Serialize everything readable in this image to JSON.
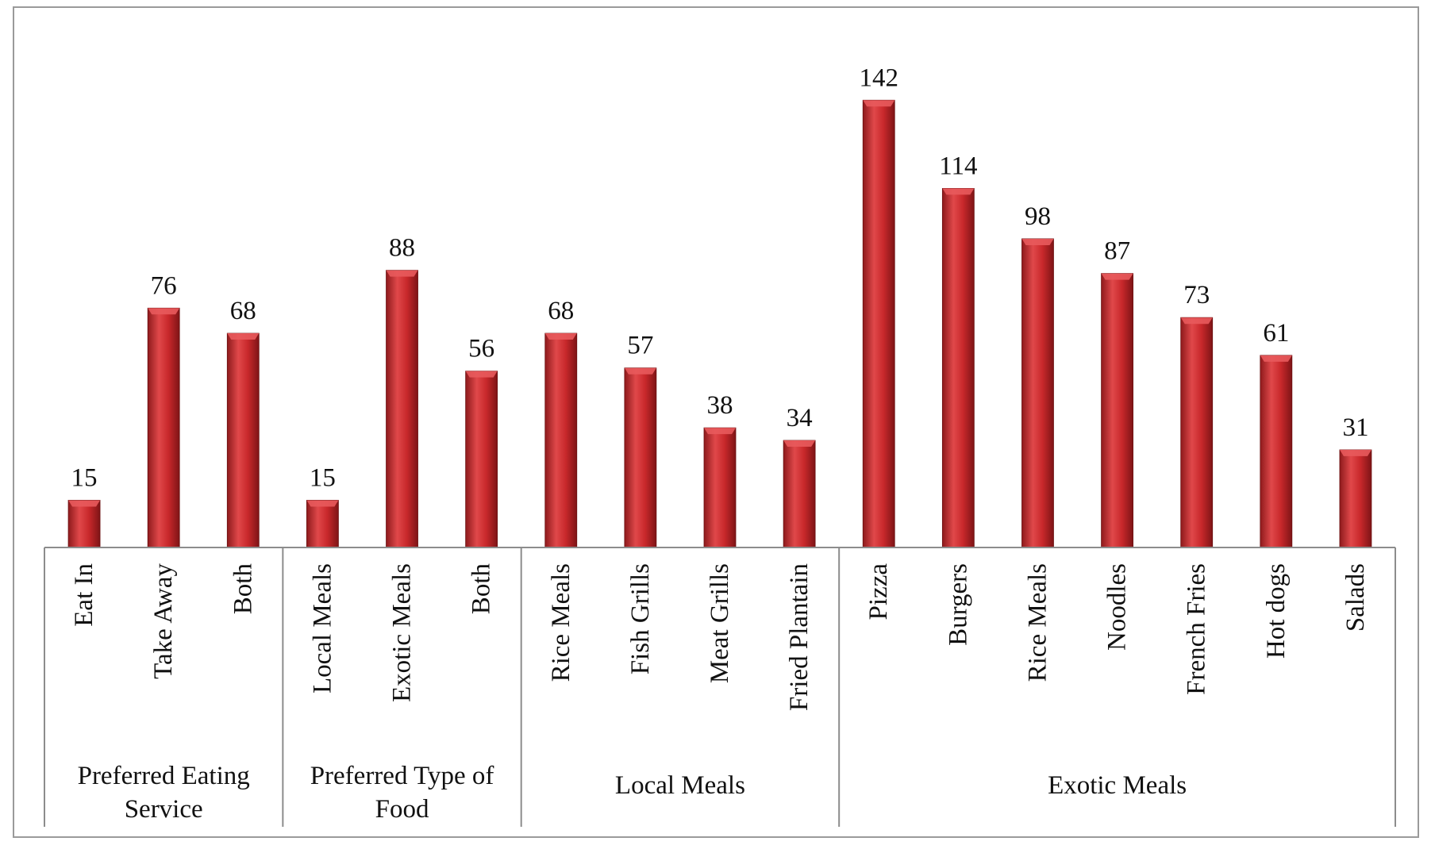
{
  "chart_data": {
    "type": "bar",
    "title": "",
    "xlabel": "",
    "ylabel": "",
    "ylim": [
      0,
      150
    ],
    "grid": false,
    "legend": "none",
    "bar_color": "#c0282b",
    "groups": [
      {
        "label": "Preferred Eating Service",
        "label_lines": [
          "Preferred Eating",
          "Service"
        ],
        "categories": [
          "Eat In",
          "Take Away",
          "Both"
        ],
        "values": [
          15,
          76,
          68
        ]
      },
      {
        "label": "Preferred Type of Food",
        "label_lines": [
          "Preferred Type of",
          "Food"
        ],
        "categories": [
          "Local Meals",
          "Exotic Meals",
          "Both"
        ],
        "values": [
          15,
          88,
          56
        ]
      },
      {
        "label": "Local Meals",
        "label_lines": [
          "Local Meals"
        ],
        "categories": [
          "Rice Meals",
          "Fish Grills",
          "Meat Grills",
          "Fried Plantain"
        ],
        "values": [
          68,
          57,
          38,
          34
        ]
      },
      {
        "label": "Exotic Meals",
        "label_lines": [
          "Exotic Meals"
        ],
        "categories": [
          "Pizza",
          "Burgers",
          "Rice Meals",
          "Noodles",
          "French Fries",
          "Hot dogs",
          "Salads"
        ],
        "values": [
          142,
          114,
          98,
          87,
          73,
          61,
          31
        ]
      }
    ]
  }
}
